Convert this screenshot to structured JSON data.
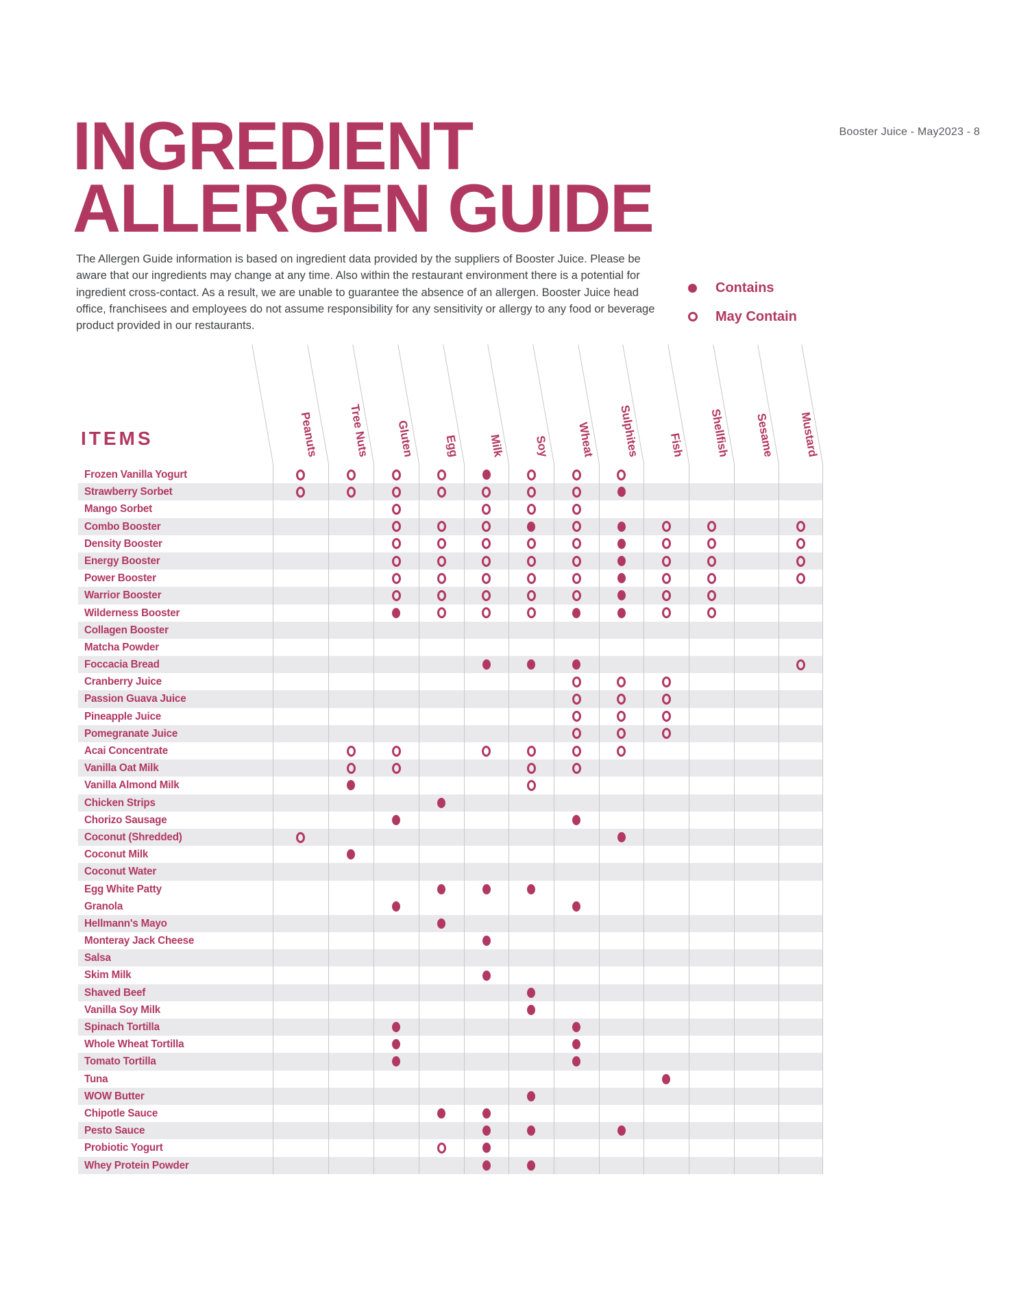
{
  "page_ref": "Booster Juice - May2023 - 8",
  "title": {
    "line1": "INGREDIENT",
    "line2": "ALLERGEN GUIDE"
  },
  "disclaimer": "The Allergen Guide information is based on ingredient data provided by the suppliers of Booster Juice. Please be aware that our ingredients may change at any time.  Also within the restaurant environment there is a potential for ingredient cross-contact.  As a result, we are unable to guarantee the absence of an allergen. Booster Juice head office, franchisees and employees do not assume responsibility for any sensitivity or allergy to any food or beverage product provided in our restaurants.",
  "legend": {
    "contains_label": "Contains",
    "may_contain_label": "May Contain"
  },
  "table": {
    "items_header": "ITEMS",
    "allergens": [
      "Peanuts",
      "Tree Nuts",
      "Gluten",
      "Egg",
      "Milk",
      "Soy",
      "Wheat",
      "Sulphites",
      "Fish",
      "Shellfish",
      "Sesame",
      "Mustard"
    ],
    "mark_legend": {
      "C": "contains",
      "M": "may_contain",
      "": "none"
    },
    "rows": [
      {
        "item": "Frozen Vanilla Yogurt",
        "shaded": false,
        "marks": [
          "M",
          "M",
          "M",
          "M",
          "C",
          "M",
          "M",
          "M",
          "",
          "",
          "",
          ""
        ]
      },
      {
        "item": "Strawberry Sorbet",
        "shaded": true,
        "marks": [
          "M",
          "M",
          "M",
          "M",
          "M",
          "M",
          "M",
          "C",
          "",
          "",
          "",
          ""
        ]
      },
      {
        "item": "Mango Sorbet",
        "shaded": false,
        "marks": [
          "",
          "",
          "M",
          "",
          "M",
          "M",
          "M",
          "",
          "",
          "",
          "",
          ""
        ]
      },
      {
        "item": "Combo Booster",
        "shaded": true,
        "marks": [
          "",
          "",
          "M",
          "M",
          "M",
          "C",
          "M",
          "C",
          "M",
          "M",
          "",
          "M"
        ]
      },
      {
        "item": "Density Booster",
        "shaded": false,
        "marks": [
          "",
          "",
          "M",
          "M",
          "M",
          "M",
          "M",
          "C",
          "M",
          "M",
          "",
          "M"
        ]
      },
      {
        "item": "Energy Booster",
        "shaded": true,
        "marks": [
          "",
          "",
          "M",
          "M",
          "M",
          "M",
          "M",
          "C",
          "M",
          "M",
          "",
          "M"
        ]
      },
      {
        "item": "Power Booster",
        "shaded": false,
        "marks": [
          "",
          "",
          "M",
          "M",
          "M",
          "M",
          "M",
          "C",
          "M",
          "M",
          "",
          "M"
        ]
      },
      {
        "item": "Warrior Booster",
        "shaded": true,
        "marks": [
          "",
          "",
          "M",
          "M",
          "M",
          "M",
          "M",
          "C",
          "M",
          "M",
          "",
          ""
        ]
      },
      {
        "item": "Wilderness Booster",
        "shaded": false,
        "marks": [
          "",
          "",
          "C",
          "M",
          "M",
          "M",
          "C",
          "C",
          "M",
          "M",
          "",
          ""
        ]
      },
      {
        "item": "Collagen Booster",
        "shaded": true,
        "marks": [
          "",
          "",
          "",
          "",
          "",
          "",
          "",
          "",
          "",
          "",
          "",
          ""
        ]
      },
      {
        "item": "Matcha Powder",
        "shaded": false,
        "marks": [
          "",
          "",
          "",
          "",
          "",
          "",
          "",
          "",
          "",
          "",
          "",
          ""
        ]
      },
      {
        "item": "Foccacia Bread",
        "shaded": true,
        "marks": [
          "",
          "",
          "",
          "",
          "C",
          "C",
          "C",
          "",
          "",
          "",
          "",
          "M"
        ]
      },
      {
        "item": "Cranberry Juice",
        "shaded": false,
        "marks": [
          "",
          "",
          "",
          "",
          "",
          "",
          "M",
          "M",
          "M",
          "",
          "",
          ""
        ]
      },
      {
        "item": "Passion Guava Juice",
        "shaded": true,
        "marks": [
          "",
          "",
          "",
          "",
          "",
          "",
          "M",
          "M",
          "M",
          "",
          "",
          ""
        ]
      },
      {
        "item": "Pineapple Juice",
        "shaded": false,
        "marks": [
          "",
          "",
          "",
          "",
          "",
          "",
          "M",
          "M",
          "M",
          "",
          "",
          ""
        ]
      },
      {
        "item": "Pomegranate Juice",
        "shaded": true,
        "marks": [
          "",
          "",
          "",
          "",
          "",
          "",
          "M",
          "M",
          "M",
          "",
          "",
          ""
        ]
      },
      {
        "item": "Acai Concentrate",
        "shaded": false,
        "marks": [
          "",
          "M",
          "M",
          "",
          "M",
          "M",
          "M",
          "M",
          "",
          "",
          "",
          ""
        ]
      },
      {
        "item": "Vanilla Oat Milk",
        "shaded": true,
        "marks": [
          "",
          "M",
          "M",
          "",
          "",
          "M",
          "M",
          "",
          "",
          "",
          "",
          ""
        ]
      },
      {
        "item": "Vanilla Almond Milk",
        "shaded": false,
        "marks": [
          "",
          "C",
          "",
          "",
          "",
          "M",
          "",
          "",
          "",
          "",
          "",
          ""
        ]
      },
      {
        "item": "Chicken Strips",
        "shaded": true,
        "marks": [
          "",
          "",
          "",
          "C",
          "",
          "",
          "",
          "",
          "",
          "",
          "",
          ""
        ]
      },
      {
        "item": "Chorizo Sausage",
        "shaded": false,
        "marks": [
          "",
          "",
          "C",
          "",
          "",
          "",
          "C",
          "",
          "",
          "",
          "",
          ""
        ]
      },
      {
        "item": "Coconut (Shredded)",
        "shaded": true,
        "marks": [
          "M",
          "",
          "",
          "",
          "",
          "",
          "",
          "C",
          "",
          "",
          "",
          ""
        ]
      },
      {
        "item": "Coconut Milk",
        "shaded": false,
        "marks": [
          "",
          "C",
          "",
          "",
          "",
          "",
          "",
          "",
          "",
          "",
          "",
          ""
        ]
      },
      {
        "item": "Coconut Water",
        "shaded": true,
        "marks": [
          "",
          "",
          "",
          "",
          "",
          "",
          "",
          "",
          "",
          "",
          "",
          ""
        ]
      },
      {
        "item": "Egg White Patty",
        "shaded": false,
        "marks": [
          "",
          "",
          "",
          "C",
          "C",
          "C",
          "",
          "",
          "",
          "",
          "",
          ""
        ]
      },
      {
        "item": "Granola",
        "shaded": false,
        "marks": [
          "",
          "",
          "C",
          "",
          "",
          "",
          "C",
          "",
          "",
          "",
          "",
          ""
        ]
      },
      {
        "item": "Hellmann's Mayo",
        "shaded": true,
        "marks": [
          "",
          "",
          "",
          "C",
          "",
          "",
          "",
          "",
          "",
          "",
          "",
          ""
        ]
      },
      {
        "item": "Monteray Jack Cheese",
        "shaded": false,
        "marks": [
          "",
          "",
          "",
          "",
          "C",
          "",
          "",
          "",
          "",
          "",
          "",
          ""
        ]
      },
      {
        "item": "Salsa",
        "shaded": true,
        "marks": [
          "",
          "",
          "",
          "",
          "",
          "",
          "",
          "",
          "",
          "",
          "",
          ""
        ]
      },
      {
        "item": "Skim Milk",
        "shaded": false,
        "marks": [
          "",
          "",
          "",
          "",
          "C",
          "",
          "",
          "",
          "",
          "",
          "",
          ""
        ]
      },
      {
        "item": "Shaved Beef",
        "shaded": true,
        "marks": [
          "",
          "",
          "",
          "",
          "",
          "C",
          "",
          "",
          "",
          "",
          "",
          ""
        ]
      },
      {
        "item": "Vanilla Soy Milk",
        "shaded": false,
        "marks": [
          "",
          "",
          "",
          "",
          "",
          "C",
          "",
          "",
          "",
          "",
          "",
          ""
        ]
      },
      {
        "item": "Spinach Tortilla",
        "shaded": true,
        "marks": [
          "",
          "",
          "C",
          "",
          "",
          "",
          "C",
          "",
          "",
          "",
          "",
          ""
        ]
      },
      {
        "item": "Whole Wheat Tortilla",
        "shaded": false,
        "marks": [
          "",
          "",
          "C",
          "",
          "",
          "",
          "C",
          "",
          "",
          "",
          "",
          ""
        ]
      },
      {
        "item": "Tomato Tortilla",
        "shaded": true,
        "marks": [
          "",
          "",
          "C",
          "",
          "",
          "",
          "C",
          "",
          "",
          "",
          "",
          ""
        ]
      },
      {
        "item": "Tuna",
        "shaded": false,
        "marks": [
          "",
          "",
          "",
          "",
          "",
          "",
          "",
          "",
          "C",
          "",
          "",
          ""
        ]
      },
      {
        "item": "WOW Butter",
        "shaded": true,
        "marks": [
          "",
          "",
          "",
          "",
          "",
          "C",
          "",
          "",
          "",
          "",
          "",
          ""
        ]
      },
      {
        "item": "Chipotle Sauce",
        "shaded": false,
        "marks": [
          "",
          "",
          "",
          "C",
          "C",
          "",
          "",
          "",
          "",
          "",
          "",
          ""
        ]
      },
      {
        "item": "Pesto Sauce",
        "shaded": true,
        "marks": [
          "",
          "",
          "",
          "",
          "C",
          "C",
          "",
          "C",
          "",
          "",
          "",
          ""
        ]
      },
      {
        "item": "Probiotic Yogurt",
        "shaded": false,
        "marks": [
          "",
          "",
          "",
          "M",
          "C",
          "",
          "",
          "",
          "",
          "",
          "",
          ""
        ]
      },
      {
        "item": "Whey Protein Powder",
        "shaded": true,
        "marks": [
          "",
          "",
          "",
          "",
          "C",
          "C",
          "",
          "",
          "",
          "",
          "",
          ""
        ]
      }
    ]
  },
  "colors": {
    "accent": "#b13860",
    "row_stripe": "#e9e9eb",
    "grid_line": "#c6c7c9",
    "body_text": "#3f4042",
    "muted_text": "#57585c",
    "background": "#ffffff"
  }
}
